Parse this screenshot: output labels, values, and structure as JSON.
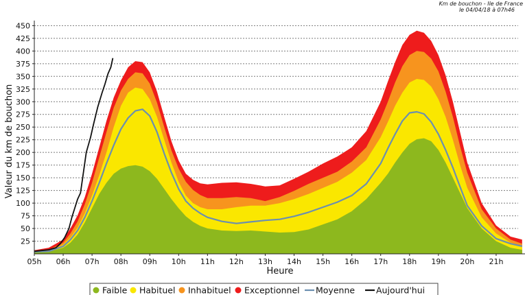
{
  "chart_data": {
    "type": "area",
    "title_lines": [
      "Km de bouchon - Ile de France",
      "le 04/04/18 à 07h46"
    ],
    "xlabel": "Heure",
    "ylabel": "Valeur du  km de bouchon",
    "xlim": [
      5.0,
      22.0
    ],
    "ylim": [
      0,
      460
    ],
    "x_ticks": [
      5,
      6,
      7,
      8,
      9,
      10,
      11,
      12,
      13,
      14,
      15,
      16,
      17,
      18,
      19,
      20,
      21
    ],
    "x_tick_labels": [
      "05h",
      "06h",
      "07h",
      "08h",
      "09h",
      "10h",
      "11h",
      "12h",
      "13h",
      "14h",
      "15h",
      "16h",
      "17h",
      "18h",
      "19h",
      "20h",
      "21h"
    ],
    "y_ticks": [
      25,
      50,
      75,
      100,
      125,
      150,
      175,
      200,
      225,
      250,
      275,
      300,
      325,
      350,
      375,
      400,
      425,
      450
    ],
    "grid": "horizontal-dashed",
    "legend_position": "bottom",
    "x": [
      5.0,
      5.5,
      6.0,
      6.25,
      6.5,
      6.75,
      7.0,
      7.25,
      7.5,
      7.75,
      8.0,
      8.25,
      8.5,
      8.75,
      9.0,
      9.25,
      9.5,
      9.75,
      10.0,
      10.25,
      10.5,
      10.75,
      11.0,
      11.5,
      12.0,
      12.5,
      13.0,
      13.5,
      14.0,
      14.5,
      15.0,
      15.5,
      16.0,
      16.5,
      17.0,
      17.25,
      17.5,
      17.75,
      18.0,
      18.25,
      18.5,
      18.75,
      19.0,
      19.25,
      19.5,
      19.75,
      20.0,
      20.5,
      21.0,
      21.5,
      21.9
    ],
    "series": [
      {
        "name": "Faible",
        "color": "#8db81e",
        "style": "area",
        "values": [
          3,
          4,
          12,
          22,
          38,
          62,
          90,
          118,
          140,
          158,
          168,
          173,
          175,
          172,
          163,
          148,
          128,
          108,
          90,
          74,
          63,
          55,
          50,
          46,
          45,
          46,
          44,
          42,
          43,
          48,
          58,
          68,
          84,
          108,
          140,
          158,
          180,
          200,
          217,
          226,
          228,
          222,
          205,
          180,
          150,
          120,
          90,
          50,
          25,
          12,
          8
        ]
      },
      {
        "name": "Habituel",
        "color": "#fae700",
        "style": "area",
        "values": [
          4,
          6,
          18,
          32,
          52,
          80,
          115,
          155,
          200,
          250,
          292,
          318,
          328,
          325,
          305,
          270,
          225,
          180,
          142,
          115,
          100,
          92,
          88,
          88,
          92,
          95,
          95,
          100,
          108,
          118,
          130,
          142,
          160,
          185,
          230,
          260,
          292,
          318,
          338,
          345,
          343,
          330,
          305,
          270,
          225,
          175,
          130,
          72,
          40,
          22,
          15
        ]
      },
      {
        "name": "Inhabituel",
        "color": "#f7941e",
        "style": "area",
        "values": [
          5,
          8,
          22,
          40,
          64,
          98,
          140,
          190,
          240,
          288,
          322,
          345,
          358,
          356,
          336,
          298,
          250,
          204,
          168,
          142,
          126,
          116,
          110,
          110,
          112,
          110,
          104,
          112,
          124,
          138,
          150,
          162,
          182,
          210,
          265,
          300,
          338,
          370,
          392,
          400,
          398,
          385,
          360,
          320,
          270,
          212,
          160,
          88,
          50,
          28,
          20
        ]
      },
      {
        "name": "Exceptionnel",
        "color": "#ee1c1c",
        "style": "area",
        "values": [
          7,
          12,
          28,
          50,
          76,
          112,
          158,
          210,
          262,
          308,
          342,
          368,
          380,
          378,
          358,
          320,
          270,
          222,
          184,
          158,
          146,
          139,
          137,
          140,
          141,
          138,
          133,
          135,
          148,
          162,
          178,
          192,
          210,
          242,
          300,
          340,
          378,
          412,
          432,
          440,
          436,
          420,
          392,
          352,
          300,
          240,
          180,
          100,
          56,
          34,
          28
        ]
      },
      {
        "name": "Moyenne",
        "color": "#6b8fb0",
        "style": "line",
        "values": [
          4,
          5,
          15,
          28,
          46,
          72,
          104,
          140,
          178,
          214,
          246,
          268,
          282,
          285,
          272,
          240,
          198,
          160,
          128,
          104,
          90,
          80,
          72,
          64,
          60,
          63,
          66,
          68,
          74,
          82,
          92,
          102,
          115,
          138,
          178,
          208,
          236,
          262,
          278,
          280,
          276,
          260,
          236,
          205,
          170,
          132,
          95,
          55,
          30,
          20,
          15
        ]
      },
      {
        "name": "Aujourd'hui",
        "color": "#111111",
        "style": "line",
        "x": [
          5.0,
          5.5,
          5.75,
          5.9,
          6.05,
          6.2,
          6.3,
          6.4,
          6.5,
          6.6,
          6.7,
          6.8,
          6.95,
          7.05,
          7.2,
          7.35,
          7.45,
          7.55,
          7.65,
          7.72
        ],
        "values": [
          5,
          8,
          12,
          20,
          32,
          50,
          72,
          90,
          108,
          120,
          160,
          200,
          230,
          255,
          290,
          318,
          335,
          355,
          368,
          386
        ]
      }
    ]
  }
}
